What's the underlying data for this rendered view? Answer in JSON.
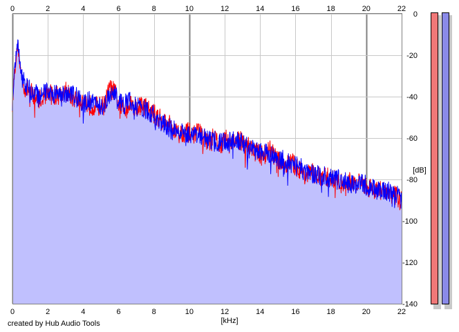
{
  "chart_data": {
    "type": "area",
    "xlabel": "[kHz]",
    "ylabel": "[dB]",
    "xlim": [
      0,
      22
    ],
    "ylim": [
      -140,
      0
    ],
    "x_ticks": [
      0,
      2,
      4,
      6,
      8,
      10,
      12,
      14,
      16,
      18,
      20,
      22
    ],
    "y_ticks": [
      0,
      -20,
      -40,
      -60,
      -80,
      -100,
      -120,
      -140
    ],
    "grid": true,
    "fill_color": "#c0c0fe",
    "series": [
      {
        "color": "#ff0000",
        "x": [
          0.0,
          0.1,
          0.2,
          0.3,
          0.5,
          0.7,
          1.0,
          1.3,
          1.6,
          2.0,
          2.4,
          2.8,
          3.0,
          3.3,
          3.6,
          4.0,
          4.4,
          4.8,
          5.2,
          5.5,
          5.8,
          6.0,
          6.3,
          6.6,
          7.0,
          7.4,
          7.8,
          8.2,
          8.6,
          9.0,
          9.4,
          9.8,
          10.2,
          10.6,
          11.0,
          11.4,
          11.8,
          12.2,
          12.6,
          13.0,
          13.4,
          13.8,
          14.2,
          14.6,
          15.0,
          15.4,
          15.8,
          16.2,
          16.6,
          17.0,
          17.4,
          17.8,
          18.2,
          18.6,
          19.0,
          19.4,
          19.8,
          20.2,
          20.6,
          21.0,
          21.4,
          21.8,
          22.0
        ],
        "y": [
          -45,
          -30,
          -22,
          -15,
          -30,
          -36,
          -37,
          -40,
          -41,
          -38,
          -40,
          -38,
          -37,
          -40,
          -41,
          -42,
          -44,
          -45,
          -44,
          -36,
          -38,
          -44,
          -46,
          -43,
          -45,
          -44,
          -47,
          -50,
          -52,
          -54,
          -58,
          -57,
          -58,
          -57,
          -62,
          -60,
          -63,
          -60,
          -62,
          -61,
          -64,
          -67,
          -68,
          -66,
          -71,
          -73,
          -72,
          -75,
          -78,
          -77,
          -79,
          -79,
          -80,
          -82,
          -81,
          -82,
          -82,
          -84,
          -85,
          -86,
          -87,
          -88,
          -91
        ]
      },
      {
        "color": "#0000ff",
        "x": [
          0.0,
          0.1,
          0.2,
          0.3,
          0.5,
          0.7,
          1.0,
          1.3,
          1.6,
          2.0,
          2.4,
          2.8,
          3.0,
          3.3,
          3.6,
          4.0,
          4.4,
          4.8,
          5.2,
          5.5,
          5.8,
          6.0,
          6.3,
          6.6,
          7.0,
          7.4,
          7.8,
          8.2,
          8.6,
          9.0,
          9.4,
          9.8,
          10.2,
          10.6,
          11.0,
          11.4,
          11.8,
          12.2,
          12.6,
          13.0,
          13.4,
          13.8,
          14.2,
          14.6,
          15.0,
          15.4,
          15.8,
          16.2,
          16.6,
          17.0,
          17.4,
          17.8,
          18.2,
          18.6,
          19.0,
          19.4,
          19.8,
          20.2,
          20.6,
          21.0,
          21.4,
          21.8,
          22.0
        ],
        "y": [
          -44,
          -28,
          -20,
          -13,
          -30,
          -34,
          -37,
          -38,
          -40,
          -37,
          -39,
          -37,
          -38,
          -39,
          -40,
          -43,
          -42,
          -44,
          -45,
          -38,
          -39,
          -43,
          -44,
          -42,
          -45,
          -46,
          -48,
          -51,
          -53,
          -56,
          -57,
          -59,
          -60,
          -58,
          -60,
          -61,
          -62,
          -62,
          -61,
          -62,
          -65,
          -66,
          -67,
          -68,
          -70,
          -71,
          -73,
          -74,
          -76,
          -78,
          -78,
          -79,
          -80,
          -80,
          -82,
          -83,
          -82,
          -84,
          -85,
          -86,
          -86,
          -87,
          -90
        ]
      }
    ]
  },
  "footer": {
    "credit": "created by Hub Audio Tools"
  },
  "meters": {
    "left_color": "#f07878",
    "right_color": "#8a8ae8"
  }
}
